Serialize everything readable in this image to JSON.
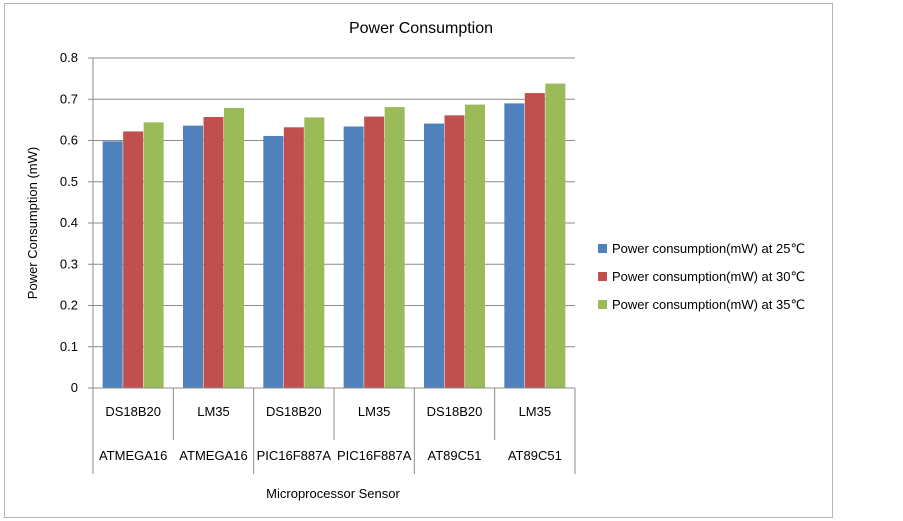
{
  "chart_data": {
    "type": "bar",
    "title": "Power Consumption",
    "ylabel": "Power Consumption (mW)",
    "xlabel": "Microprocessor Sensor",
    "ylim": [
      0,
      0.8
    ],
    "yticks": [
      "0",
      "0.1",
      "0.2",
      "0.3",
      "0.4",
      "0.5",
      "0.6",
      "0.7",
      "0.8"
    ],
    "grid": true,
    "legend_position": "right",
    "categories": [
      {
        "sensor": "DS18B20",
        "processor": "ATMEGA16"
      },
      {
        "sensor": "LM35",
        "processor": "ATMEGA16"
      },
      {
        "sensor": "DS18B20",
        "processor": "PIC16F887A"
      },
      {
        "sensor": "LM35",
        "processor": "PIC16F887A"
      },
      {
        "sensor": "DS18B20",
        "processor": "AT89C51"
      },
      {
        "sensor": "LM35",
        "processor": "AT89C51"
      }
    ],
    "series": [
      {
        "name": "Power consumption(mW) at 25℃",
        "color": "#4f81bd",
        "values": [
          0.598,
          0.636,
          0.611,
          0.634,
          0.641,
          0.69
        ]
      },
      {
        "name": "Power consumption(mW) at 30℃",
        "color": "#c0504d",
        "values": [
          0.622,
          0.657,
          0.632,
          0.658,
          0.661,
          0.715
        ]
      },
      {
        "name": "Power consumption(mW) at 35℃",
        "color": "#9bbb59",
        "values": [
          0.644,
          0.679,
          0.656,
          0.681,
          0.687,
          0.738
        ]
      }
    ]
  }
}
